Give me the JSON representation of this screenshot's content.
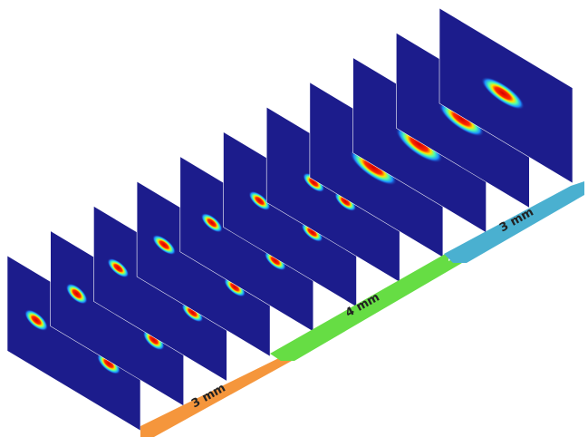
{
  "labels": [
    "3 mm",
    "4 mm",
    "3 mm"
  ]
}
